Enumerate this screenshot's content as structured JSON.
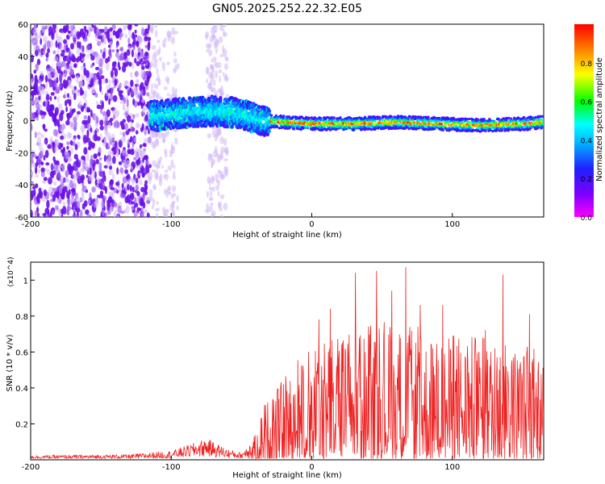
{
  "title": "GN05.2025.252.22.32.E05",
  "chart_data": [
    {
      "type": "heatmap",
      "name": "spectrogram",
      "xlabel": "Height of straight line (km)",
      "ylabel": "Frequency (Hz)",
      "xlim": [
        -200,
        165
      ],
      "ylim": [
        -60,
        60
      ],
      "xticks": [
        "-200",
        "-100",
        "0",
        "100"
      ],
      "xtick_values": [
        -200,
        -100,
        0,
        100
      ],
      "yticks": [
        "60",
        "40",
        "20",
        "0",
        "-20",
        "-40",
        "-60"
      ],
      "ytick_values": [
        60,
        40,
        20,
        0,
        -20,
        -40,
        -60
      ],
      "colorbar": {
        "label": "Normalized spectral amplitude",
        "range": [
          0,
          1
        ],
        "ticks": [
          "0.0",
          "0.2",
          "0.4",
          "0.6",
          "0.8"
        ],
        "tick_values": [
          0.0,
          0.2,
          0.4,
          0.6,
          0.8
        ],
        "colors": [
          "#ff00ff",
          "#7a00ff",
          "#2020ff",
          "#00ffff",
          "#00ff00",
          "#ffff00",
          "#ff7f00",
          "#ff0000"
        ]
      },
      "band_ridge": {
        "x": [
          -110,
          -90,
          -70,
          -55,
          -45,
          -35,
          -20,
          0,
          30,
          60,
          90,
          120,
          150,
          165
        ],
        "center_hz": [
          3,
          5,
          6,
          5,
          3,
          0,
          -1,
          -2,
          -2,
          -1,
          -2,
          -3,
          -2,
          -1
        ]
      },
      "noise_regions": [
        {
          "from_x": -200,
          "to_x": -115,
          "level": "strong"
        },
        {
          "from_x": -115,
          "to_x": -95,
          "level": "faint"
        },
        {
          "from_x": -75,
          "to_x": -60,
          "level": "faint"
        }
      ]
    },
    {
      "type": "line",
      "name": "snr",
      "xlabel": "Height of straight line (km)",
      "ylabel": "SNR (10 * v/v)",
      "y_multiplier": "(x10^4)",
      "xlim": [
        -200,
        165
      ],
      "ylim": [
        0,
        1.1
      ],
      "xticks": [
        "-200",
        "-100",
        "0",
        "100"
      ],
      "xtick_values": [
        -200,
        -100,
        0,
        100
      ],
      "yticks": [
        "0.2",
        "0.4",
        "0.6",
        "0.8",
        "1"
      ],
      "ytick_values": [
        0.2,
        0.4,
        0.6,
        0.8,
        1.0
      ],
      "color": "#ee2222",
      "envelope": {
        "x": [
          -200,
          -130,
          -100,
          -85,
          -75,
          -60,
          -50,
          -40,
          -35,
          -25,
          -15,
          0,
          20,
          40,
          60,
          80,
          100,
          120,
          140,
          160,
          165
        ],
        "y_max": [
          0.025,
          0.03,
          0.05,
          0.09,
          0.12,
          0.06,
          0.04,
          0.14,
          0.3,
          0.4,
          0.5,
          0.6,
          0.7,
          0.72,
          0.75,
          0.7,
          0.68,
          0.7,
          0.66,
          0.62,
          0.6
        ]
      },
      "peaks": [
        {
          "x": 5,
          "y": 0.78
        },
        {
          "x": 13,
          "y": 0.84
        },
        {
          "x": 31,
          "y": 1.04
        },
        {
          "x": 46,
          "y": 1.05
        },
        {
          "x": 57,
          "y": 0.94
        },
        {
          "x": 67,
          "y": 1.07
        },
        {
          "x": 77,
          "y": 0.86
        },
        {
          "x": 93,
          "y": 0.86
        },
        {
          "x": 136,
          "y": 1.03
        },
        {
          "x": 155,
          "y": 0.81
        }
      ]
    }
  ]
}
